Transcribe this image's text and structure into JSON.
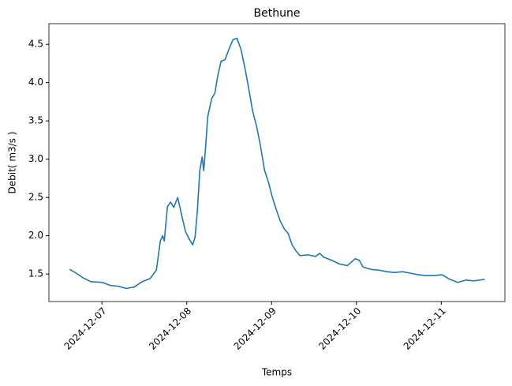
{
  "chart_data": {
    "type": "line",
    "title": "Bethune",
    "xlabel": "Temps",
    "ylabel": "Debit( m3/s )",
    "color": "#1f77b4",
    "x": [
      "2024-12-06 14:51",
      "2024-12-06 16:25",
      "2024-12-06 18:39",
      "2024-12-06 20:52",
      "2024-12-07 00:00",
      "2024-12-07 02:27",
      "2024-12-07 04:41",
      "2024-12-07 06:55",
      "2024-12-07 09:09",
      "2024-12-07 11:23",
      "2024-12-07 13:37",
      "2024-12-07 15:24",
      "2024-12-07 16:31",
      "2024-12-07 17:11",
      "2024-12-07 17:38",
      "2024-12-07 18:32",
      "2024-12-07 19:25",
      "2024-12-07 20:19",
      "2024-12-07 21:26",
      "2024-12-07 22:33",
      "2024-12-07 23:40",
      "2024-12-08 00:47",
      "2024-12-08 01:40",
      "2024-12-08 02:21",
      "2024-12-08 03:01",
      "2024-12-08 03:41",
      "2024-12-08 04:21",
      "2024-12-08 04:48",
      "2024-12-08 05:15",
      "2024-12-08 05:55",
      "2024-12-08 07:02",
      "2024-12-08 07:56",
      "2024-12-08 08:49",
      "2024-12-08 09:43",
      "2024-12-08 10:50",
      "2024-12-08 11:57",
      "2024-12-08 13:04",
      "2024-12-08 14:11",
      "2024-12-08 15:18",
      "2024-12-08 16:25",
      "2024-12-08 17:32",
      "2024-12-08 18:38",
      "2024-12-08 19:45",
      "2024-12-08 20:52",
      "2024-12-08 21:59",
      "2024-12-08 23:06",
      "2024-12-09 00:13",
      "2024-12-09 01:20",
      "2024-12-09 02:27",
      "2024-12-09 03:34",
      "2024-12-09 04:41",
      "2024-12-09 05:48",
      "2024-12-09 06:55",
      "2024-12-09 08:02",
      "2024-12-09 10:16",
      "2024-12-09 12:30",
      "2024-12-09 13:37",
      "2024-12-09 14:44",
      "2024-12-09 16:58",
      "2024-12-09 19:12",
      "2024-12-09 21:26",
      "2024-12-09 23:40",
      "2024-12-10 00:47",
      "2024-12-10 01:54",
      "2024-12-10 04:08",
      "2024-12-10 06:22",
      "2024-12-10 08:36",
      "2024-12-10 10:49",
      "2024-12-10 13:03",
      "2024-12-10 15:17",
      "2024-12-10 17:31",
      "2024-12-10 19:45",
      "2024-12-10 21:59",
      "2024-12-11 00:13",
      "2024-12-11 02:27",
      "2024-12-11 04:41",
      "2024-12-11 06:55",
      "2024-12-11 09:09",
      "2024-12-11 12:17"
    ],
    "values": [
      1.56,
      1.52,
      1.45,
      1.4,
      1.39,
      1.35,
      1.34,
      1.31,
      1.33,
      1.4,
      1.44,
      1.55,
      1.93,
      2.0,
      1.93,
      2.38,
      2.44,
      2.37,
      2.5,
      2.27,
      2.05,
      1.95,
      1.88,
      1.98,
      2.34,
      2.85,
      3.03,
      2.85,
      3.11,
      3.55,
      3.79,
      3.86,
      4.1,
      4.28,
      4.3,
      4.44,
      4.56,
      4.58,
      4.44,
      4.2,
      3.92,
      3.63,
      3.43,
      3.17,
      2.86,
      2.7,
      2.5,
      2.34,
      2.19,
      2.09,
      2.03,
      1.88,
      1.8,
      1.74,
      1.75,
      1.73,
      1.77,
      1.72,
      1.68,
      1.63,
      1.61,
      1.7,
      1.68,
      1.59,
      1.56,
      1.55,
      1.53,
      1.52,
      1.53,
      1.51,
      1.49,
      1.48,
      1.48,
      1.49,
      1.43,
      1.39,
      1.42,
      1.41,
      1.43
    ],
    "xlim": [
      "2024-12-06 09:00",
      "2024-12-11 18:00"
    ],
    "xticks": [
      "2024-12-07",
      "2024-12-08",
      "2024-12-09",
      "2024-12-10",
      "2024-12-11"
    ],
    "ylim": [
      1.14,
      4.77
    ],
    "yticks": [
      1.5,
      {
        "value": 2,
        "label": "2.0"
      },
      2.5,
      {
        "value": 3,
        "label": "3.0"
      },
      3.5,
      {
        "value": 4,
        "label": "4.0"
      },
      4.5
    ]
  }
}
